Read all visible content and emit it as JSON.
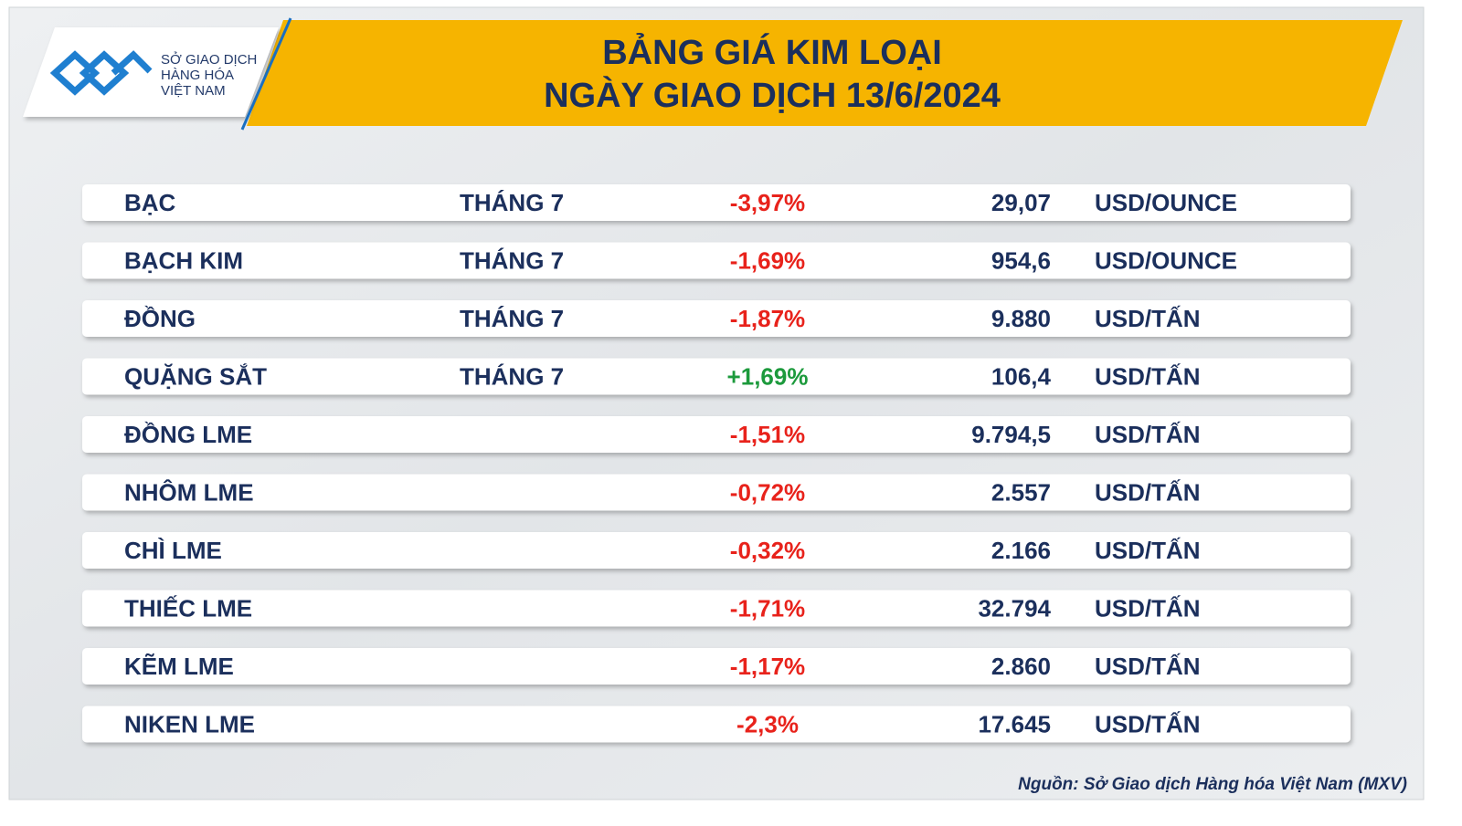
{
  "header": {
    "logo_lines": [
      "SỞ GIAO DỊCH",
      "HÀNG HÓA",
      "VIỆT NAM"
    ],
    "title_lines": [
      "BẢNG GIÁ KIM LOẠI",
      "NGÀY GIAO DỊCH 13/6/2024"
    ]
  },
  "table": {
    "rows": [
      {
        "name": "BẠC",
        "month": "THÁNG 7",
        "change": "-3,97%",
        "price": "29,07",
        "unit": "USD/OUNCE"
      },
      {
        "name": "BẠCH KIM",
        "month": "THÁNG 7",
        "change": "-1,69%",
        "price": "954,6",
        "unit": "USD/OUNCE"
      },
      {
        "name": "ĐỒNG",
        "month": "THÁNG 7",
        "change": "-1,87%",
        "price": "9.880",
        "unit": "USD/TẤN"
      },
      {
        "name": "QUẶNG SẮT",
        "month": "THÁNG 7",
        "change": "+1,69%",
        "price": "106,4",
        "unit": "USD/TẤN"
      },
      {
        "name": "ĐỒNG LME",
        "change": "-1,51%",
        "price": "9.794,5",
        "unit": "USD/TẤN"
      },
      {
        "name": "NHÔM LME",
        "change": "-0,72%",
        "price": "2.557",
        "unit": "USD/TẤN"
      },
      {
        "name": "CHÌ LME",
        "change": "-0,32%",
        "price": "2.166",
        "unit": "USD/TẤN"
      },
      {
        "name": "THIẾC LME",
        "change": "-1,71%",
        "price": "32.794",
        "unit": "USD/TẤN"
      },
      {
        "name": "KẼM LME",
        "change": "-1,17%",
        "price": "2.860",
        "unit": "USD/TẤN"
      },
      {
        "name": "NIKEN LME",
        "change": "-2,3%",
        "price": "17.645",
        "unit": "USD/TẤN"
      }
    ]
  },
  "footer": {
    "source": "Nguồn: Sở Giao dịch Hàng hóa Việt Nam (MXV)"
  }
}
